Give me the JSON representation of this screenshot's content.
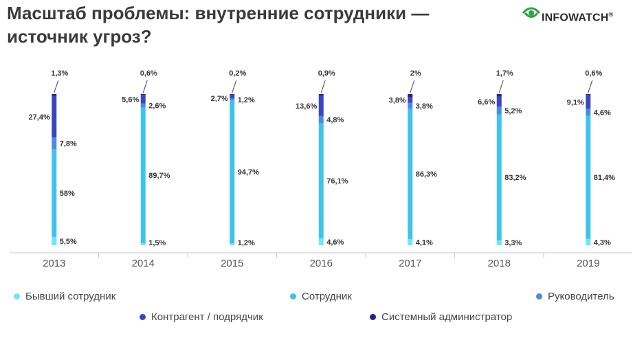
{
  "title": "Масштаб проблемы: внутренние сотрудники — источник угроз?",
  "logo": {
    "text": "INFOWATCH",
    "mark": "®"
  },
  "colors": {
    "former_employee": "#6fe6f5",
    "employee": "#3fc3ea",
    "manager": "#4a8be0",
    "contractor": "#3a45c4",
    "sysadmin": "#23247a"
  },
  "chart_data": {
    "type": "bar",
    "stacked": true,
    "categories": [
      "2013",
      "2014",
      "2015",
      "2016",
      "2017",
      "2018",
      "2019"
    ],
    "series": [
      {
        "name": "Бывший сотрудник",
        "key": "former_employee",
        "values": [
          5.5,
          1.5,
          1.2,
          4.6,
          4.1,
          3.3,
          4.3
        ],
        "labels": [
          "5,5%",
          "1,5%",
          "1,2%",
          "4,6%",
          "4,1%",
          "3,3%",
          "4,3%"
        ]
      },
      {
        "name": "Сотрудник",
        "key": "employee",
        "values": [
          58,
          89.7,
          94.7,
          76.1,
          86.3,
          83.2,
          81.4
        ],
        "labels": [
          "58%",
          "89,7%",
          "94,7%",
          "76,1%",
          "86,3%",
          "83,2%",
          "81,4%"
        ]
      },
      {
        "name": "Руководитель",
        "key": "manager",
        "values": [
          7.8,
          2.6,
          1.2,
          4.8,
          3.8,
          5.2,
          4.6
        ],
        "labels": [
          "7,8%",
          "2,6%",
          "1,2%",
          "4,8%",
          "3,8%",
          "5,2%",
          "4,6%"
        ]
      },
      {
        "name": "Контрагент / подрядчик",
        "key": "contractor",
        "values": [
          27.4,
          5.6,
          2.7,
          13.6,
          3.8,
          6.6,
          9.1
        ],
        "labels": [
          "27,4%",
          "5,6%",
          "2,7%",
          "13,6%",
          "3,8%",
          "6,6%",
          "9,1%"
        ]
      },
      {
        "name": "Системный администратор",
        "key": "sysadmin",
        "values": [
          1.3,
          0.6,
          0.2,
          0.9,
          2,
          1.7,
          0.6
        ],
        "labels": [
          "1,3%",
          "0,6%",
          "0,2%",
          "0,9%",
          "2%",
          "1,7%",
          "0,6%"
        ]
      }
    ],
    "ylim": [
      0,
      100
    ],
    "grid": false,
    "legend": "bottom"
  }
}
